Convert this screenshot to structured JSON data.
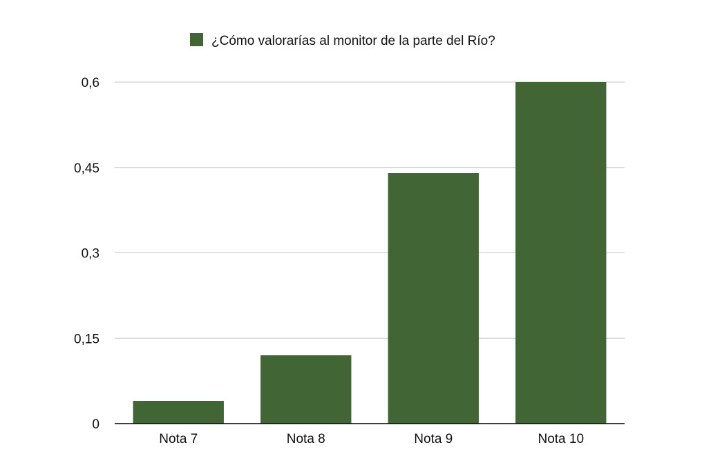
{
  "chart_data": {
    "type": "bar",
    "title": "",
    "xlabel": "",
    "ylabel": "",
    "categories": [
      "Nota 7",
      "Nota 8",
      "Nota 9",
      "Nota 10"
    ],
    "series": [
      {
        "name": "¿Cómo valorarías al monitor de la parte del Río?",
        "color": "#426535",
        "values": [
          0.04,
          0.12,
          0.44,
          0.6
        ]
      }
    ],
    "ylim": [
      0,
      0.6
    ],
    "yticks": [
      0,
      0.15,
      0.3,
      0.45,
      0.6
    ],
    "ytick_labels": [
      "0",
      "0,15",
      "0,3",
      "0,45",
      "0,6"
    ],
    "grid": true,
    "legend_position": "top-center"
  }
}
